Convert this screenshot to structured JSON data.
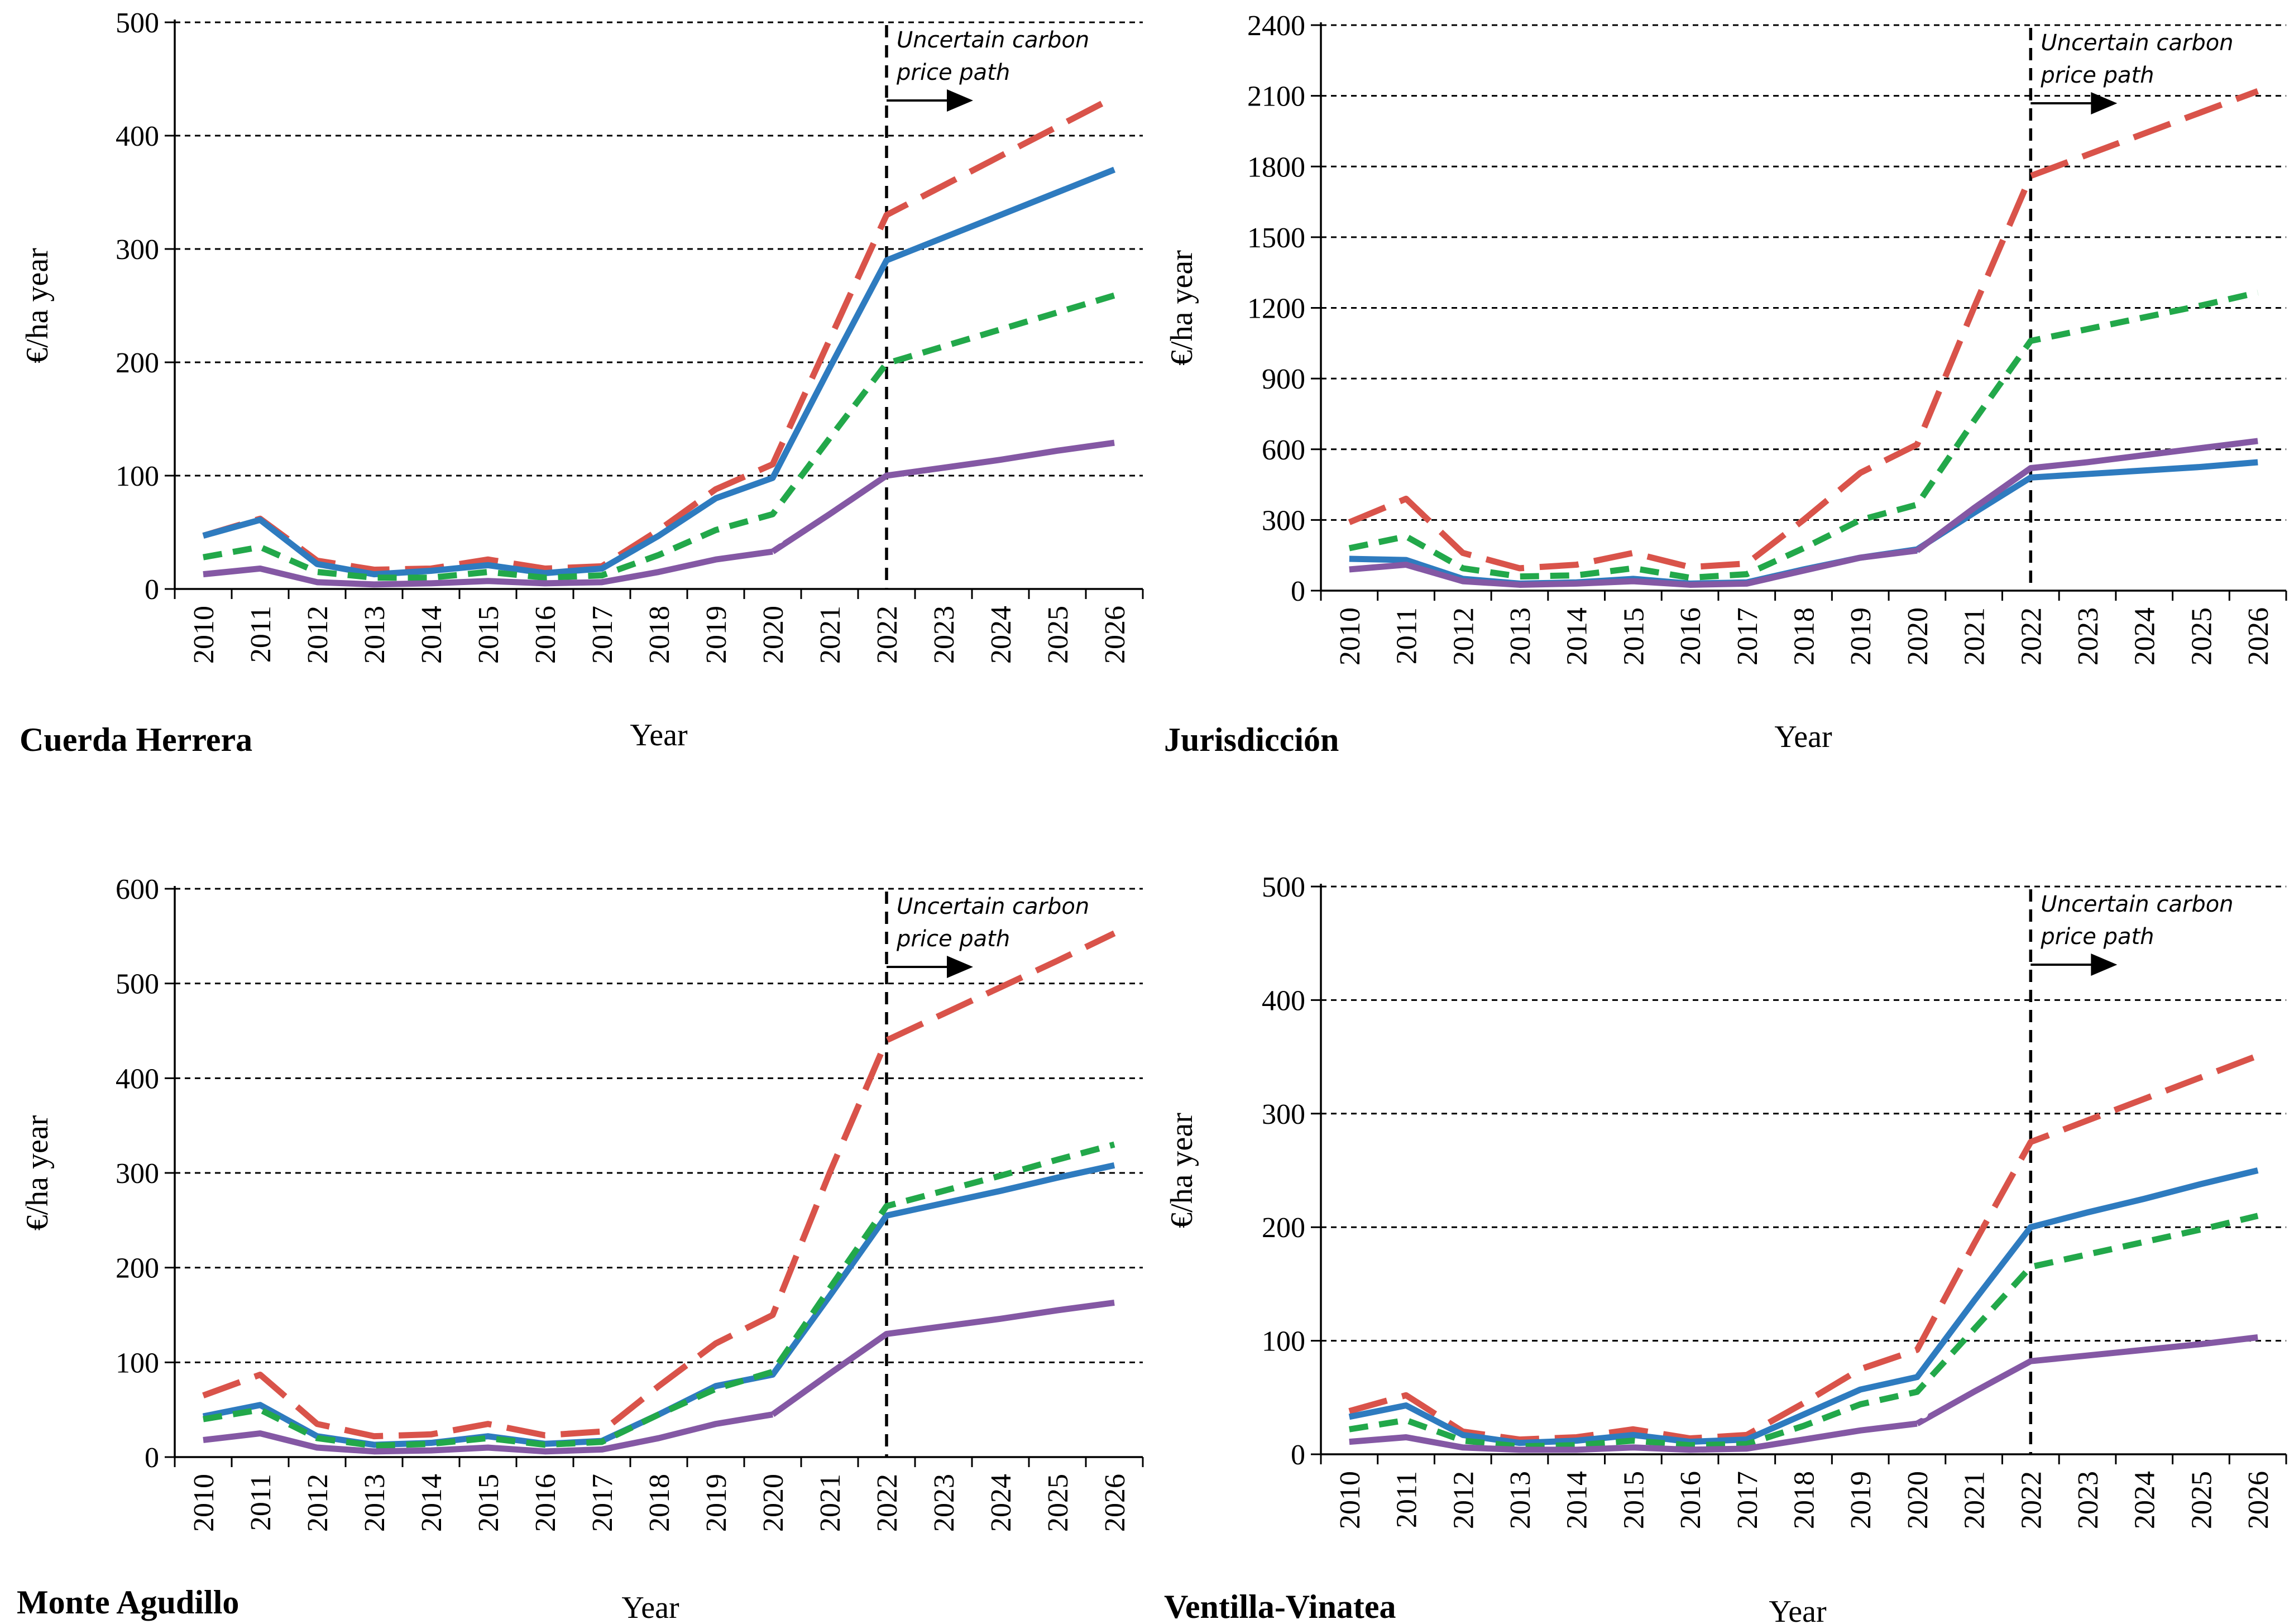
{
  "chart_data": [
    {
      "type": "line",
      "title": "Cuerda Herrera",
      "xlabel": "Year",
      "ylabel": "€/ha year",
      "categories": [
        "2010",
        "2011",
        "2012",
        "2013",
        "2014",
        "2015",
        "2016",
        "2017",
        "2018",
        "2019",
        "2020",
        "2021",
        "2022",
        "2023",
        "2024",
        "2025",
        "2026"
      ],
      "ylim": [
        0,
        500
      ],
      "yticks": [
        0,
        100,
        200,
        300,
        400,
        500
      ],
      "grid": "horizontal dashed",
      "annotation": {
        "lines": [
          "Uncertain carbon",
          "price path"
        ],
        "x": "2022"
      },
      "series": [
        {
          "color": "#d9534a",
          "dash": "long-dash",
          "values": [
            47,
            62,
            25,
            17,
            18,
            26,
            18,
            20,
            52,
            88,
            110,
            220,
            330,
            356,
            382,
            408,
            434
          ]
        },
        {
          "color": "#2e7bbf",
          "dash": "solid",
          "values": [
            47,
            61,
            22,
            13,
            16,
            21,
            14,
            18,
            47,
            80,
            98,
            195,
            290,
            310,
            330,
            350,
            370
          ]
        },
        {
          "color": "#22a84a",
          "dash": "short-dash",
          "values": [
            28,
            37,
            15,
            10,
            10,
            15,
            10,
            12,
            30,
            52,
            66,
            133,
            199,
            214,
            229,
            244,
            259
          ]
        },
        {
          "color": "#8458a4",
          "dash": "solid-gap",
          "values": [
            13,
            18,
            6,
            4,
            5,
            7,
            5,
            6,
            15,
            26,
            33,
            66,
            100,
            107,
            114,
            122,
            129
          ]
        }
      ]
    },
    {
      "type": "line",
      "title": "Jurisdicción",
      "xlabel": "Year",
      "ylabel": "€/ha year",
      "categories": [
        "2010",
        "2011",
        "2012",
        "2013",
        "2014",
        "2015",
        "2016",
        "2017",
        "2018",
        "2019",
        "2020",
        "2021",
        "2022",
        "2023",
        "2024",
        "2025",
        "2026"
      ],
      "ylim": [
        0,
        2400
      ],
      "yticks": [
        0,
        300,
        600,
        900,
        1200,
        1500,
        1800,
        2100,
        2400
      ],
      "grid": "horizontal dashed",
      "annotation": {
        "lines": [
          "Uncertain carbon",
          "price path"
        ],
        "x": "2022"
      },
      "series": [
        {
          "color": "#d9534a",
          "dash": "long-dash",
          "values": [
            290,
            390,
            160,
            95,
            110,
            160,
            100,
            115,
            300,
            500,
            620,
            1200,
            1760,
            1850,
            1940,
            2030,
            2120
          ]
        },
        {
          "color": "#2e7bbf",
          "dash": "solid",
          "values": [
            135,
            130,
            50,
            30,
            35,
            50,
            30,
            35,
            90,
            140,
            175,
            330,
            480,
            495,
            510,
            525,
            545
          ]
        },
        {
          "color": "#22a84a",
          "dash": "short-dash",
          "values": [
            180,
            230,
            95,
            60,
            65,
            95,
            55,
            70,
            180,
            300,
            365,
            720,
            1060,
            1110,
            1160,
            1210,
            1265
          ]
        },
        {
          "color": "#8458a4",
          "dash": "solid-gap",
          "values": [
            90,
            110,
            40,
            25,
            30,
            40,
            25,
            30,
            85,
            140,
            170,
            350,
            520,
            545,
            575,
            605,
            635
          ]
        }
      ]
    },
    {
      "type": "line",
      "title": "Monte Agudillo",
      "xlabel": "Year",
      "ylabel": "€/ha year",
      "categories": [
        "2010",
        "2011",
        "2012",
        "2013",
        "2014",
        "2015",
        "2016",
        "2017",
        "2018",
        "2019",
        "2020",
        "2021",
        "2022",
        "2023",
        "2024",
        "2025",
        "2026"
      ],
      "ylim": [
        0,
        600
      ],
      "yticks": [
        0,
        100,
        200,
        300,
        400,
        500,
        600
      ],
      "grid": "horizontal dashed",
      "annotation": {
        "lines": [
          "Uncertain carbon",
          "price path"
        ],
        "x": "2022"
      },
      "series": [
        {
          "color": "#d9534a",
          "dash": "long-dash",
          "values": [
            65,
            87,
            35,
            22,
            24,
            35,
            23,
            27,
            75,
            120,
            150,
            300,
            440,
            468,
            496,
            524,
            553
          ]
        },
        {
          "color": "#2e7bbf",
          "dash": "solid",
          "values": [
            43,
            55,
            22,
            13,
            15,
            22,
            14,
            17,
            45,
            75,
            87,
            170,
            255,
            268,
            281,
            295,
            308
          ]
        },
        {
          "color": "#22a84a",
          "dash": "short-dash",
          "values": [
            40,
            50,
            20,
            12,
            14,
            20,
            13,
            16,
            45,
            72,
            90,
            178,
            265,
            281,
            297,
            314,
            330
          ]
        },
        {
          "color": "#8458a4",
          "dash": "solid-gap",
          "values": [
            18,
            25,
            10,
            6,
            7,
            10,
            6,
            8,
            20,
            35,
            45,
            88,
            130,
            138,
            146,
            155,
            163
          ]
        }
      ]
    },
    {
      "type": "line",
      "title": "Ventilla-Vinatea",
      "xlabel": "Year",
      "ylabel": "€/ha year",
      "categories": [
        "2010",
        "2011",
        "2012",
        "2013",
        "2014",
        "2015",
        "2016",
        "2017",
        "2018",
        "2019",
        "2020",
        "2021",
        "2022",
        "2023",
        "2024",
        "2025",
        "2026"
      ],
      "ylim": [
        0,
        500
      ],
      "yticks": [
        0,
        100,
        200,
        300,
        400,
        500
      ],
      "grid": "horizontal dashed",
      "annotation": {
        "lines": [
          "Uncertain carbon",
          "price path"
        ],
        "x": "2022"
      },
      "series": [
        {
          "color": "#d9534a",
          "dash": "long-dash",
          "values": [
            38,
            52,
            20,
            13,
            15,
            22,
            14,
            17,
            45,
            75,
            92,
            185,
            275,
            294,
            313,
            332,
            351
          ]
        },
        {
          "color": "#2e7bbf",
          "dash": "solid",
          "values": [
            33,
            43,
            17,
            10,
            12,
            17,
            11,
            13,
            35,
            57,
            68,
            135,
            200,
            213,
            225,
            238,
            250
          ]
        },
        {
          "color": "#22a84a",
          "dash": "short-dash",
          "values": [
            22,
            30,
            12,
            7,
            8,
            12,
            8,
            9,
            25,
            44,
            55,
            110,
            165,
            176,
            187,
            198,
            210
          ]
        },
        {
          "color": "#8458a4",
          "dash": "solid-gap",
          "values": [
            11,
            15,
            6,
            4,
            4,
            6,
            4,
            5,
            13,
            21,
            27,
            55,
            82,
            87,
            92,
            97,
            103
          ]
        }
      ]
    }
  ]
}
